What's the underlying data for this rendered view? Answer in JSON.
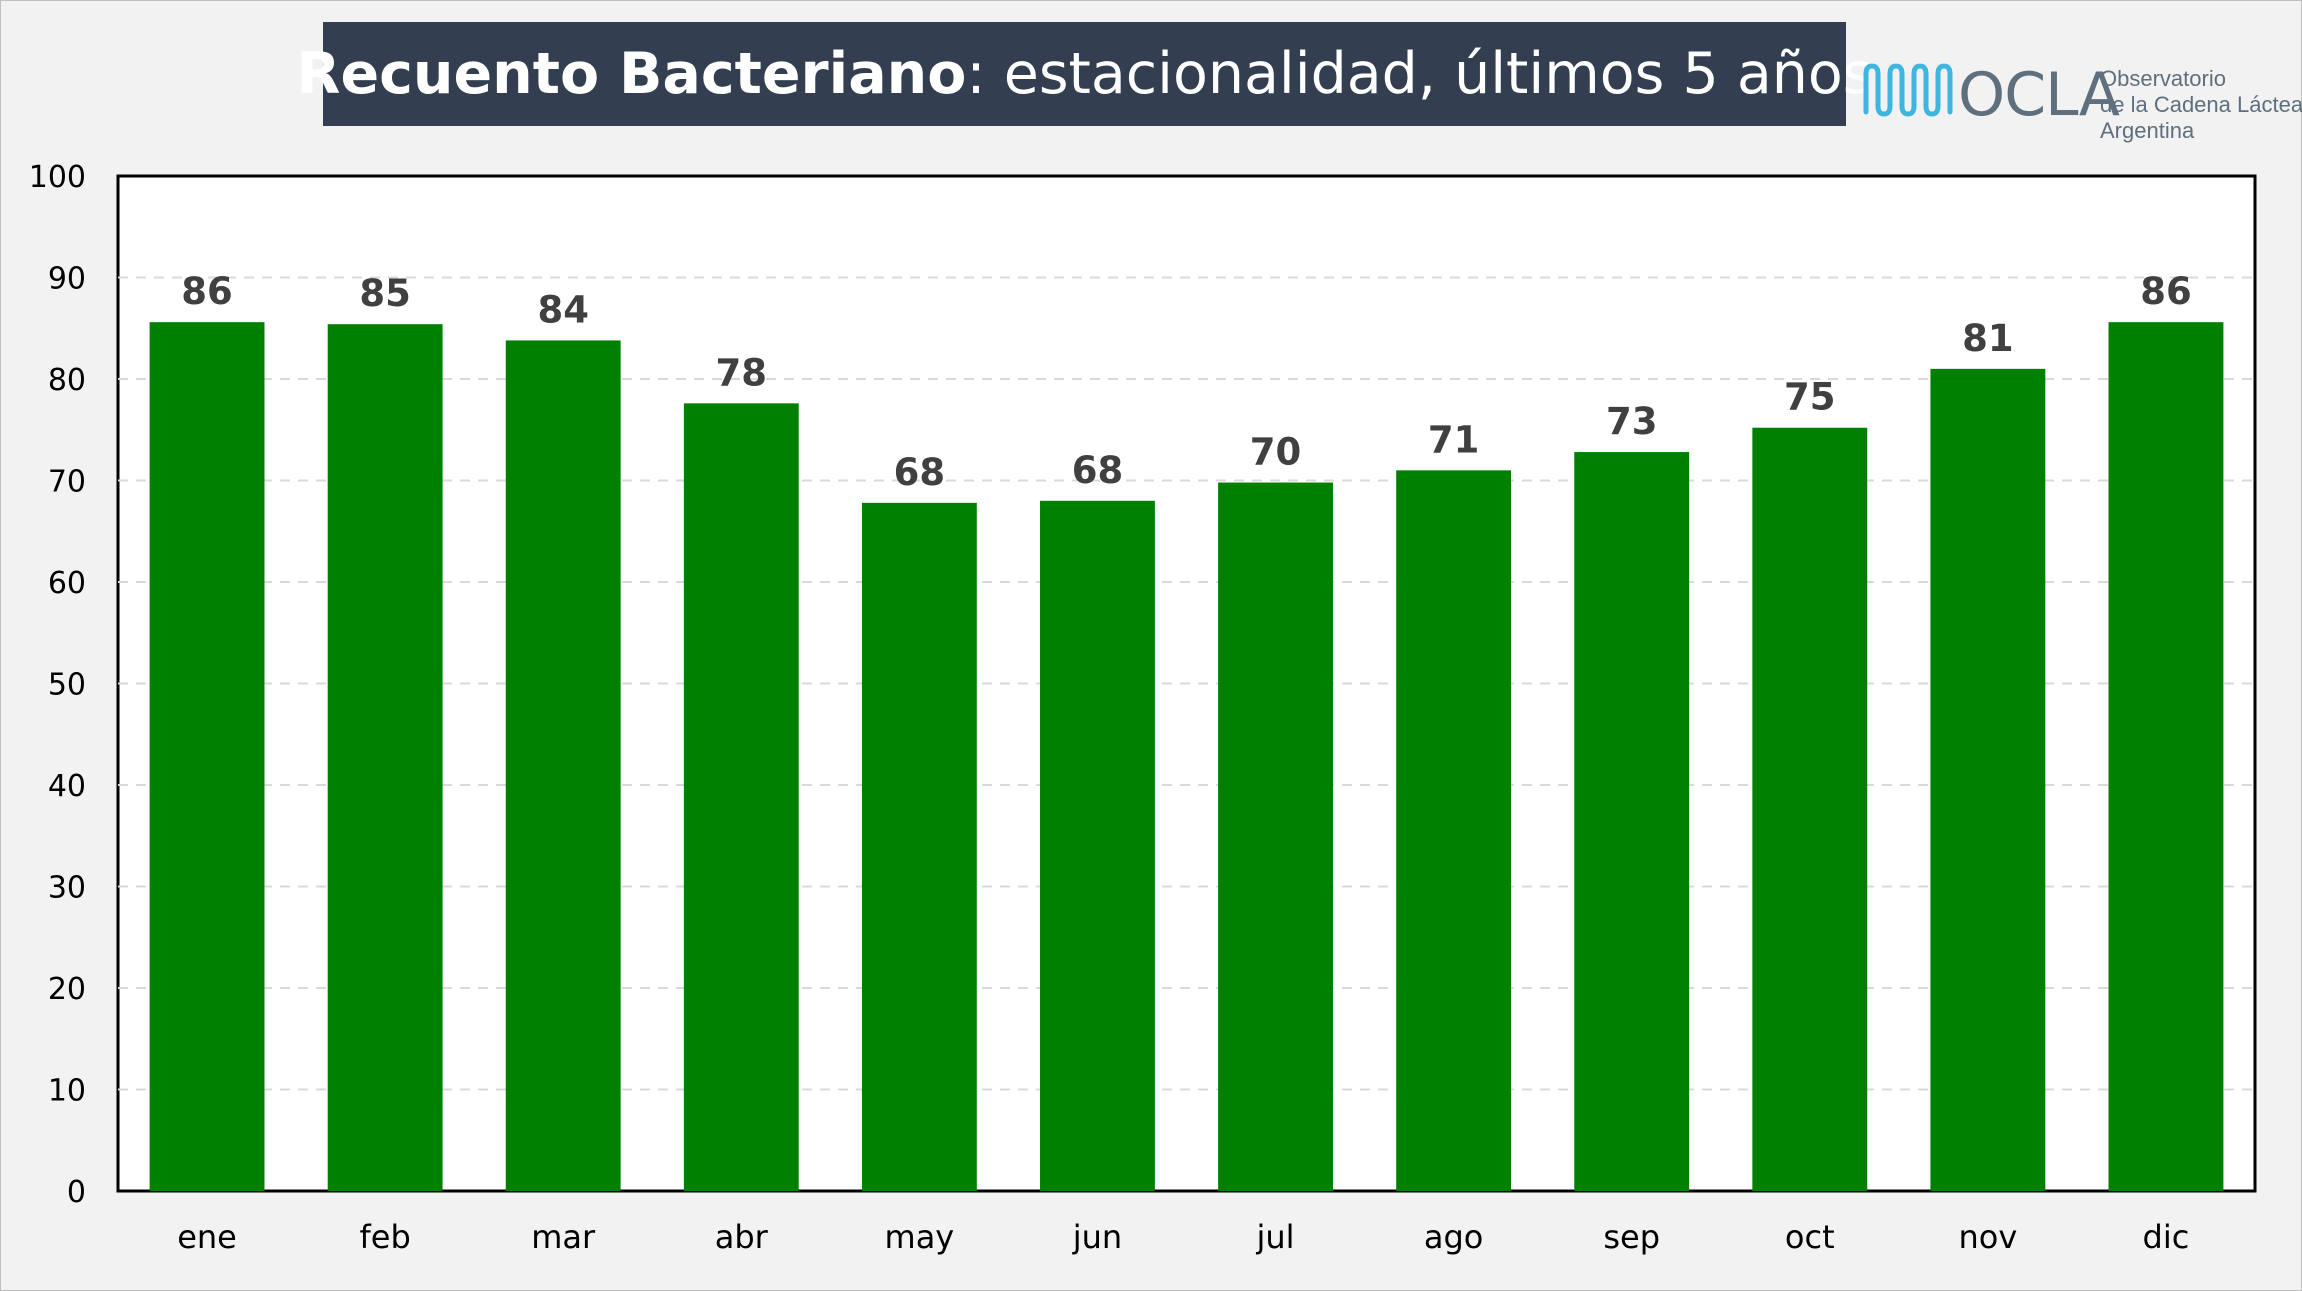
{
  "header": {
    "title_bold": "Recuento Bacteriano",
    "title_rest": ": estacionalidad, últimos 5 años"
  },
  "logo": {
    "wordmark": "OCLA",
    "line1": "Observatorio",
    "line2": "de la Cadena Láctea",
    "line3": "Argentina",
    "icon": "milk-wave-icon",
    "color": "#5f6f7e",
    "accent": "#3fb6e0"
  },
  "chart_data": {
    "type": "bar",
    "title": "Recuento Bacteriano: estacionalidad, últimos 5 años",
    "categories": [
      "ene",
      "feb",
      "mar",
      "abr",
      "may",
      "jun",
      "jul",
      "ago",
      "sep",
      "oct",
      "nov",
      "dic"
    ],
    "values": [
      85.6,
      85.4,
      83.8,
      77.6,
      67.8,
      68.0,
      69.8,
      71.0,
      72.8,
      75.2,
      81.0,
      85.6
    ],
    "data_labels": [
      "86",
      "85",
      "84",
      "78",
      "68",
      "68",
      "70",
      "71",
      "73",
      "75",
      "81",
      "86"
    ],
    "ylim": [
      0,
      100
    ],
    "yticks": [
      0,
      10,
      20,
      30,
      40,
      50,
      60,
      70,
      80,
      90,
      100
    ],
    "grid": true,
    "xlabel": "",
    "ylabel": "",
    "bar_color": "#008000",
    "label_color": "#404040"
  }
}
